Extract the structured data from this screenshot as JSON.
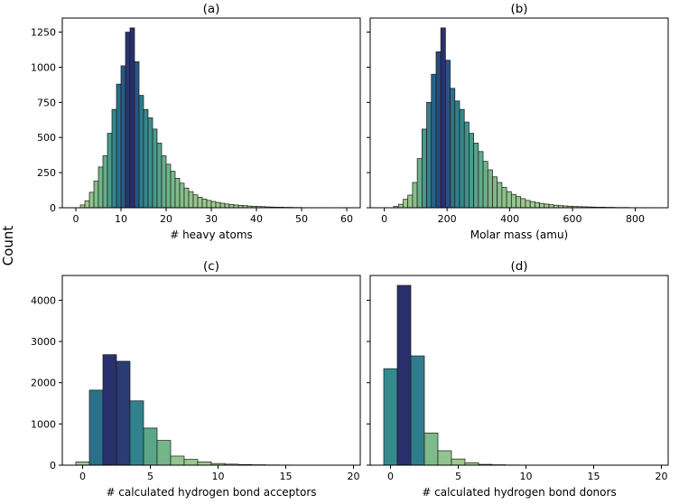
{
  "figure": {
    "shared_ylabel": "Count"
  },
  "chart_data": [
    {
      "type": "bar",
      "title": "(a)",
      "xlabel": "# heavy atoms",
      "ylabel": "",
      "xlim": [
        -3,
        63
      ],
      "ylim": [
        0,
        1350
      ],
      "xticks": [
        0,
        10,
        20,
        30,
        40,
        50,
        60
      ],
      "yticks": [
        0,
        250,
        500,
        750,
        1000,
        1250
      ],
      "bin_width": 1,
      "bin_start": 1,
      "values": [
        20,
        50,
        110,
        190,
        290,
        370,
        530,
        700,
        880,
        1010,
        1250,
        1280,
        1040,
        800,
        700,
        640,
        560,
        460,
        370,
        310,
        260,
        210,
        175,
        140,
        115,
        92,
        75,
        62,
        52,
        45,
        38,
        32,
        27,
        23,
        20,
        17,
        15,
        12,
        10,
        9,
        8,
        6,
        5,
        4,
        4,
        3,
        3,
        2,
        2,
        1,
        1,
        1,
        1,
        1,
        0,
        0,
        0,
        0,
        1,
        0
      ],
      "bar_ylim": [
        0,
        1350
      ],
      "colormap": "crest"
    },
    {
      "type": "bar",
      "title": "(b)",
      "xlabel": "Molar mass (amu)",
      "ylabel": "",
      "xlim": [
        -45,
        905
      ],
      "ylim": [
        0,
        1350
      ],
      "xticks": [
        0,
        200,
        400,
        600,
        800
      ],
      "yticks": [
        0,
        250,
        500,
        750,
        1000,
        1250
      ],
      "bin_width": 15,
      "bin_start": 30,
      "values": [
        10,
        25,
        60,
        90,
        180,
        350,
        560,
        750,
        950,
        1110,
        1280,
        1050,
        850,
        760,
        700,
        610,
        530,
        460,
        400,
        330,
        270,
        220,
        180,
        145,
        115,
        95,
        80,
        65,
        52,
        44,
        37,
        31,
        26,
        22,
        18,
        15,
        13,
        11,
        9,
        8,
        7,
        6,
        5,
        4,
        4,
        3,
        3,
        2,
        2,
        2,
        1,
        1,
        1,
        1,
        1,
        0
      ],
      "colormap": "crest"
    },
    {
      "type": "bar",
      "title": "(c)",
      "xlabel": "# calculated hydrogen bond acceptors",
      "ylabel": "",
      "xlim": [
        -1.5,
        20.5
      ],
      "ylim": [
        0,
        4600
      ],
      "xticks": [
        0,
        5,
        10,
        15,
        20
      ],
      "yticks": [
        0,
        1000,
        2000,
        3000,
        4000
      ],
      "bin_width": 1,
      "bin_start": -0.5,
      "values": [
        80,
        1820,
        2680,
        2520,
        1560,
        900,
        600,
        220,
        140,
        80,
        40,
        25,
        15,
        10,
        6,
        4,
        3,
        2,
        1,
        1
      ],
      "colormap": "crest"
    },
    {
      "type": "bar",
      "title": "(d)",
      "xlabel": "# calculated hydrogen bond donors",
      "ylabel": "",
      "xlim": [
        -1.5,
        20.5
      ],
      "ylim": [
        0,
        4600
      ],
      "xticks": [
        0,
        5,
        10,
        15,
        20
      ],
      "yticks": [
        0,
        1000,
        2000,
        3000,
        4000
      ],
      "bin_width": 1,
      "bin_start": -0.5,
      "values": [
        2340,
        4360,
        2650,
        780,
        350,
        150,
        60,
        20,
        10,
        5,
        3,
        2,
        1,
        1,
        0,
        0,
        0,
        0,
        0,
        0
      ],
      "colormap": "crest"
    }
  ]
}
